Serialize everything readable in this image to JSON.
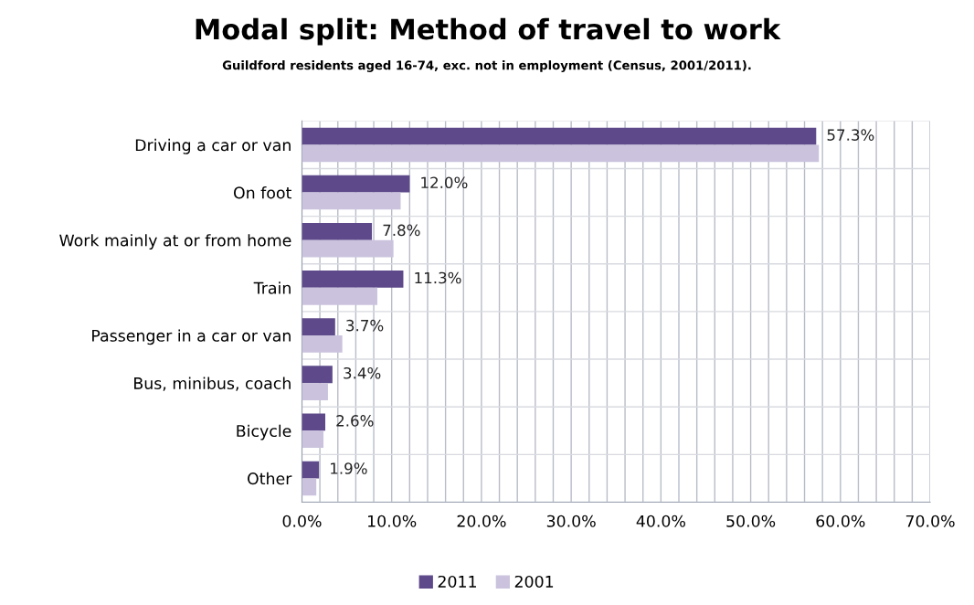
{
  "chart_data": {
    "type": "bar",
    "orientation": "horizontal",
    "title": "Modal split: Method of travel to work",
    "subtitle": "Guildford residents aged 16-74, exc. not in employment (Census, 2001/2011).",
    "categories": [
      "Driving a car or van",
      "On foot",
      "Work mainly at or from home",
      "Train",
      "Passenger in a car or van",
      "Bus, minibus, coach",
      "Bicycle",
      "Other"
    ],
    "series": [
      {
        "name": "2011",
        "color": "#5e4a8a",
        "values": [
          57.3,
          12.0,
          7.8,
          11.3,
          3.7,
          3.4,
          2.6,
          1.9
        ],
        "value_labels": [
          "57.3%",
          "12.0%",
          "7.8%",
          "11.3%",
          "3.7%",
          "3.4%",
          "2.6%",
          "1.9%"
        ]
      },
      {
        "name": "2001",
        "color": "#cbc3de",
        "values": [
          57.6,
          11.0,
          10.2,
          8.4,
          4.5,
          2.9,
          2.4,
          1.6
        ]
      }
    ],
    "xlim": [
      0,
      70
    ],
    "xticks": [
      {
        "value": 0,
        "label": "0.0%"
      },
      {
        "value": 2,
        "label": null
      },
      {
        "value": 4,
        "label": null
      },
      {
        "value": 6,
        "label": null
      },
      {
        "value": 8,
        "label": null
      },
      {
        "value": 10,
        "label": "10.0%"
      },
      {
        "value": 12,
        "label": null
      },
      {
        "value": 14,
        "label": null
      },
      {
        "value": 16,
        "label": null
      },
      {
        "value": 18,
        "label": null
      },
      {
        "value": 20,
        "label": "20.0%"
      },
      {
        "value": 22,
        "label": null
      },
      {
        "value": 24,
        "label": null
      },
      {
        "value": 26,
        "label": null
      },
      {
        "value": 28,
        "label": null
      },
      {
        "value": 30,
        "label": "30.0%"
      },
      {
        "value": 32,
        "label": null
      },
      {
        "value": 34,
        "label": null
      },
      {
        "value": 36,
        "label": null
      },
      {
        "value": 38,
        "label": null
      },
      {
        "value": 40,
        "label": "40.0%"
      },
      {
        "value": 42,
        "label": null
      },
      {
        "value": 44,
        "label": null
      },
      {
        "value": 46,
        "label": null
      },
      {
        "value": 48,
        "label": null
      },
      {
        "value": 50,
        "label": "50.0%"
      },
      {
        "value": 52,
        "label": null
      },
      {
        "value": 54,
        "label": null
      },
      {
        "value": 56,
        "label": null
      },
      {
        "value": 58,
        "label": null
      },
      {
        "value": 60,
        "label": "60.0%"
      },
      {
        "value": 62,
        "label": null
      },
      {
        "value": 64,
        "label": null
      },
      {
        "value": 66,
        "label": null
      },
      {
        "value": 68,
        "label": null
      },
      {
        "value": 70,
        "label": "70.0%"
      }
    ],
    "grid": true,
    "legend": "bottom"
  }
}
